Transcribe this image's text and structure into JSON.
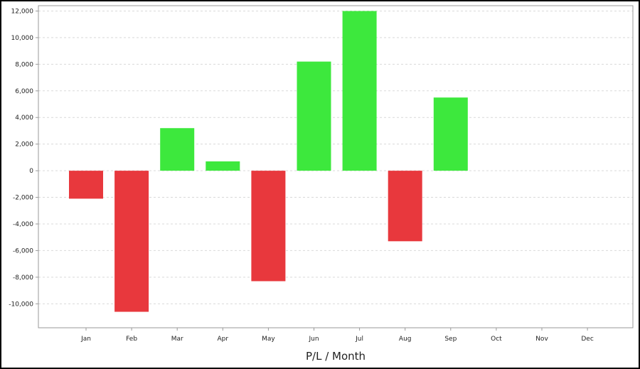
{
  "chart_data": {
    "type": "bar",
    "title": "",
    "xlabel": "P/L / Month",
    "ylabel": "",
    "categories": [
      "Jan",
      "Feb",
      "Mar",
      "Apr",
      "May",
      "Jun",
      "Jul",
      "Aug",
      "Sep",
      "Oct",
      "Nov",
      "Dec"
    ],
    "values": [
      -2100,
      -10600,
      3200,
      700,
      -8300,
      8200,
      12000,
      -5300,
      5500,
      null,
      null,
      null
    ],
    "ylim": [
      -11800,
      12400
    ],
    "yticks": [
      -10000,
      -8000,
      -6000,
      -4000,
      -2000,
      0,
      2000,
      4000,
      6000,
      8000,
      10000,
      12000
    ],
    "ytick_labels": [
      "-10,000",
      "-8,000",
      "-6,000",
      "-4,000",
      "-2,000",
      "0",
      "2,000",
      "4,000",
      "6,000",
      "8,000",
      "10,000",
      "12,000"
    ],
    "grid": true,
    "legend": "none",
    "colors": {
      "positive": "#3de83d",
      "negative": "#e8383d",
      "grid": "#d9d9d9",
      "axis": "#9a9a9a"
    }
  }
}
